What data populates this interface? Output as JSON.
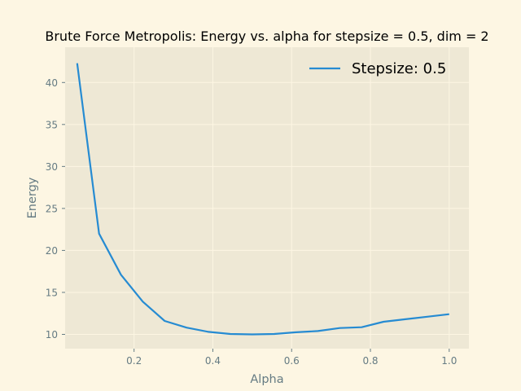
{
  "chart_data": {
    "type": "line",
    "title": "Brute Force Metropolis: Energy vs. alpha for stepsize = 0.5, dim = 2",
    "xlabel": "Alpha",
    "ylabel": "Energy",
    "xlim": [
      0.025,
      1.05
    ],
    "ylim": [
      8.3,
      44.2
    ],
    "xticks": [
      0.2,
      0.4,
      0.6,
      0.8,
      1.0
    ],
    "xtick_labels": [
      "0.2",
      "0.4",
      "0.6",
      "0.8",
      "1.0"
    ],
    "yticks": [
      10,
      15,
      20,
      25,
      30,
      35,
      40
    ],
    "ytick_labels": [
      "10",
      "15",
      "20",
      "25",
      "30",
      "35",
      "40"
    ],
    "grid": true,
    "legend_position": "top-right",
    "series": [
      {
        "name": "Stepsize: 0.5",
        "color": "#268bd2",
        "x": [
          0.0556,
          0.1111,
          0.1667,
          0.2222,
          0.2778,
          0.3333,
          0.3889,
          0.4444,
          0.5,
          0.5556,
          0.6111,
          0.6667,
          0.7222,
          0.7778,
          0.8333,
          0.8889,
          0.9444,
          1.0
        ],
        "y": [
          42.3,
          22.0,
          17.1,
          13.9,
          11.6,
          10.8,
          10.3,
          10.05,
          10.0,
          10.05,
          10.25,
          10.4,
          10.75,
          10.85,
          11.5,
          11.8,
          12.1,
          12.4
        ]
      }
    ]
  }
}
